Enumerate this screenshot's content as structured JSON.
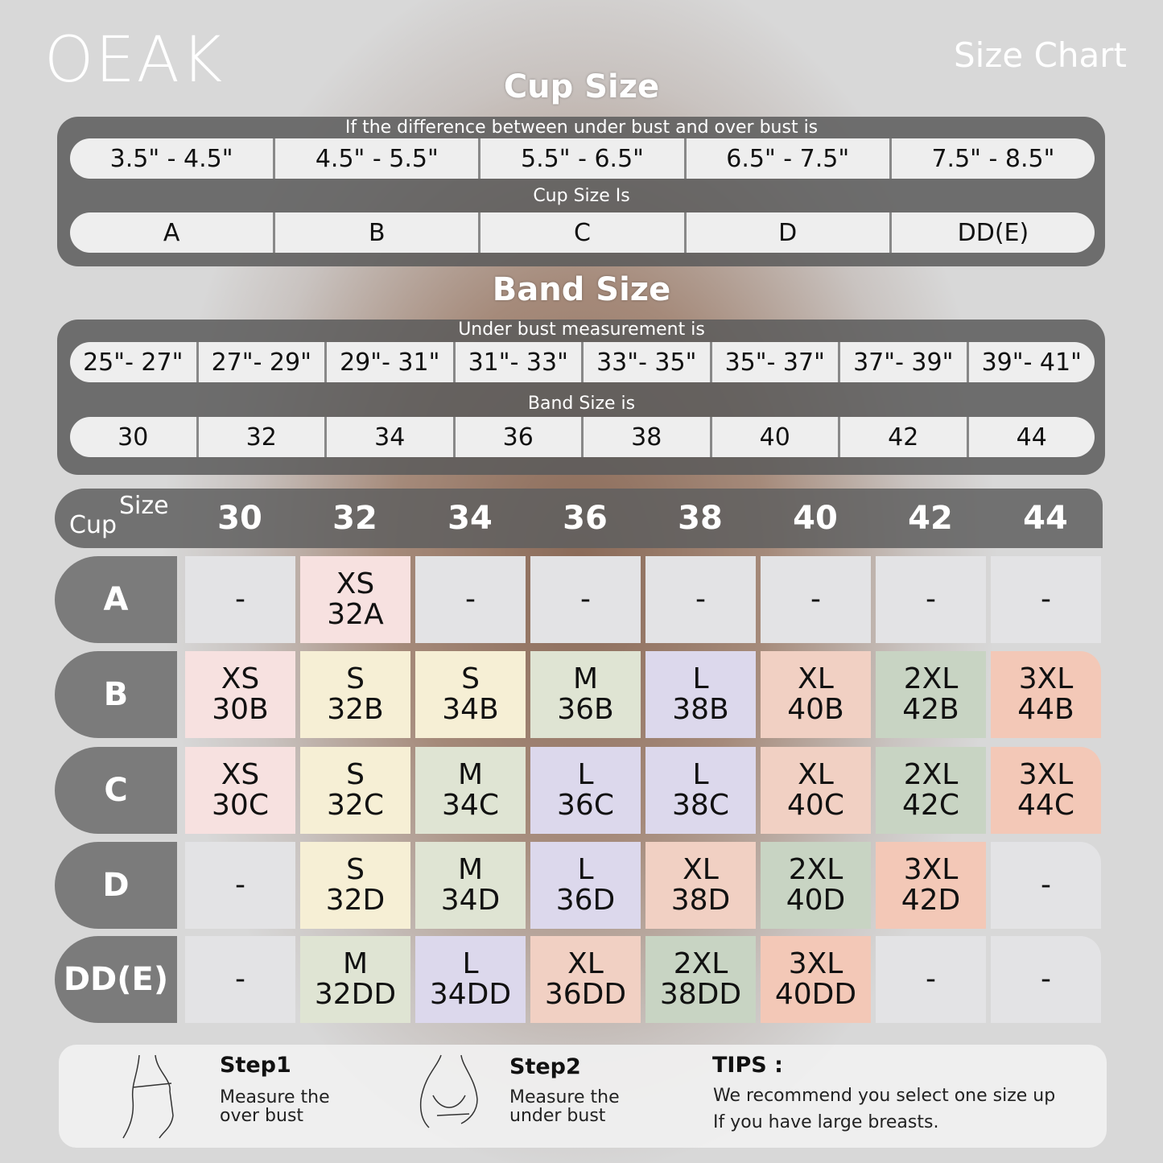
{
  "brand": "OEAK",
  "title": "Size Chart",
  "cup": {
    "heading": "Cup Size",
    "prompt": "If the  difference between under bust and over bust is",
    "ranges": [
      "3.5\" -  4.5\"",
      "4.5\" -  5.5\"",
      "5.5\" -  6.5\"",
      "6.5\" -  7.5\"",
      "7.5\" -  8.5\""
    ],
    "result_label": "Cup Size Is",
    "cups": [
      "A",
      "B",
      "C",
      "D",
      "DD(E)"
    ]
  },
  "band": {
    "heading": "Band Size",
    "prompt": "Under bust measurement is",
    "ranges": [
      "25\"- 27\"",
      "27\"- 29\"",
      "29\"- 31\"",
      "31\"- 33\"",
      "33\"- 35\"",
      "35\"- 37\"",
      "37\"- 39\"",
      "39\"- 41\""
    ],
    "result_label": "Band Size is",
    "bands": [
      "30",
      "32",
      "34",
      "36",
      "38",
      "40",
      "42",
      "44"
    ]
  },
  "table": {
    "corner_size": "Size",
    "corner_cup": "Cup",
    "columns": [
      "30",
      "32",
      "34",
      "36",
      "38",
      "40",
      "42",
      "44"
    ],
    "rows": [
      {
        "cup": "A",
        "cells": [
          [
            "-",
            ""
          ],
          [
            "XS",
            "32A"
          ],
          [
            "-",
            ""
          ],
          [
            "-",
            ""
          ],
          [
            "-",
            ""
          ],
          [
            "-",
            ""
          ],
          [
            "-",
            ""
          ],
          [
            "-",
            ""
          ]
        ]
      },
      {
        "cup": "B",
        "cells": [
          [
            "XS",
            "30B"
          ],
          [
            "S",
            "32B"
          ],
          [
            "S",
            "34B"
          ],
          [
            "M",
            "36B"
          ],
          [
            "L",
            "38B"
          ],
          [
            "XL",
            "40B"
          ],
          [
            "2XL",
            "42B"
          ],
          [
            "3XL",
            "44B"
          ]
        ]
      },
      {
        "cup": "C",
        "cells": [
          [
            "XS",
            "30C"
          ],
          [
            "S",
            "32C"
          ],
          [
            "M",
            "34C"
          ],
          [
            "L",
            "36C"
          ],
          [
            "L",
            "38C"
          ],
          [
            "XL",
            "40C"
          ],
          [
            "2XL",
            "42C"
          ],
          [
            "3XL",
            "44C"
          ]
        ]
      },
      {
        "cup": "D",
        "cells": [
          [
            "-",
            ""
          ],
          [
            "S",
            "32D"
          ],
          [
            "M",
            "34D"
          ],
          [
            "L",
            "36D"
          ],
          [
            "XL",
            "38D"
          ],
          [
            "2XL",
            "40D"
          ],
          [
            "3XL",
            "42D"
          ],
          [
            "-",
            ""
          ]
        ]
      },
      {
        "cup": "DD(E)",
        "cells": [
          [
            "-",
            ""
          ],
          [
            "M",
            "32DD"
          ],
          [
            "L",
            "34DD"
          ],
          [
            "XL",
            "36DD"
          ],
          [
            "2XL",
            "38DD"
          ],
          [
            "3XL",
            "40DD"
          ],
          [
            "-",
            ""
          ],
          [
            "-",
            ""
          ]
        ]
      }
    ],
    "colors": {
      "-": "#e3e3e5",
      "XS": "#f7e1e0",
      "S": "#f6efd5",
      "M": "#dfe4d3",
      "L": "#dcd8ec",
      "XL": "#f1d0c3",
      "2XL": "#c8d4c3",
      "3XL": "#f3c8b7"
    }
  },
  "tips": {
    "step1_title": "Step1",
    "step1_text": "Measure the\nover bust",
    "step2_title": "Step2",
    "step2_text": "Measure the\nunder bust",
    "tips_title": "TIPS :",
    "tips_line1": "We recommend you select one size up",
    "tips_line2": "If you have large breasts."
  }
}
